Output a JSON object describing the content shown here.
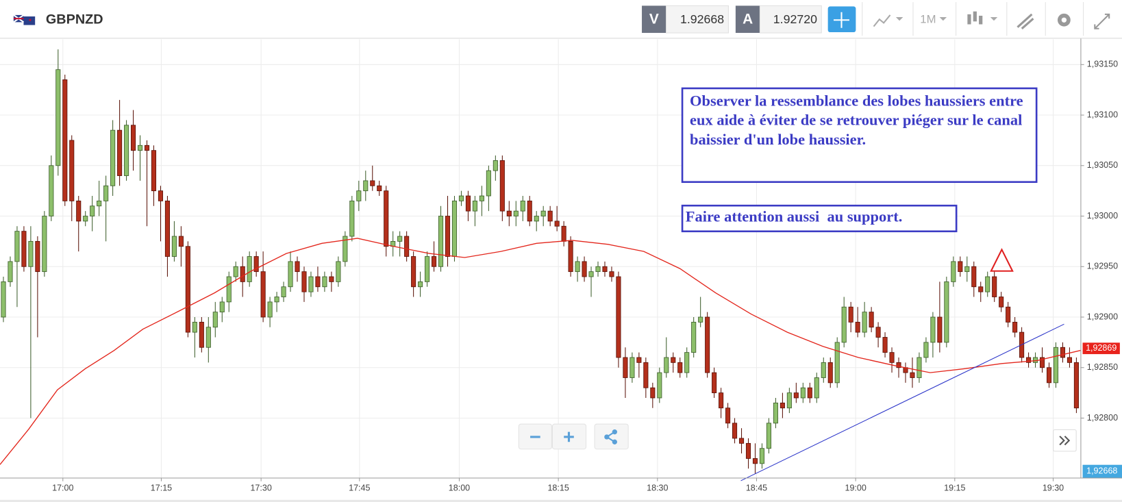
{
  "header": {
    "symbol": "GBPNZD",
    "bid_label": "V",
    "bid": "1.92668",
    "ask_label": "A",
    "ask": "1.92720",
    "timeframe": "1M"
  },
  "chart_data": {
    "type": "candlestick",
    "candles": [
      [
        1.929,
        1.9294,
        1.92895,
        1.92935
      ],
      [
        1.92935,
        1.9296,
        1.9293,
        1.92955
      ],
      [
        1.92955,
        1.9299,
        1.9291,
        1.92985
      ],
      [
        1.92985,
        1.9299,
        1.92945,
        1.9295
      ],
      [
        1.9295,
        1.9299,
        1.928,
        1.92975
      ],
      [
        1.92975,
        1.9298,
        1.9288,
        1.92945
      ],
      [
        1.92945,
        1.93005,
        1.9294,
        1.93
      ],
      [
        1.93,
        1.9306,
        1.92995,
        1.9305
      ],
      [
        1.9305,
        1.93165,
        1.9304,
        1.93145
      ],
      [
        1.93135,
        1.9314,
        1.9301,
        1.93015
      ],
      [
        1.93075,
        1.9308,
        1.92995,
        1.93015
      ],
      [
        1.93015,
        1.9302,
        1.92965,
        1.92995
      ],
      [
        1.92995,
        1.93005,
        1.9299,
        1.93
      ],
      [
        1.93,
        1.9302,
        1.92985,
        1.9301
      ],
      [
        1.9301,
        1.93035,
        1.93,
        1.93015
      ],
      [
        1.93015,
        1.9304,
        1.92975,
        1.9303
      ],
      [
        1.9303,
        1.93095,
        1.9302,
        1.93085
      ],
      [
        1.93085,
        1.93115,
        1.9303,
        1.9304
      ],
      [
        1.9304,
        1.93095,
        1.93035,
        1.9309
      ],
      [
        1.9309,
        1.93105,
        1.93045,
        1.93065
      ],
      [
        1.93065,
        1.9308,
        1.93035,
        1.9307
      ],
      [
        1.9307,
        1.93075,
        1.9299,
        1.93065
      ],
      [
        1.93065,
        1.9307,
        1.9301,
        1.93025
      ],
      [
        1.93025,
        1.9303,
        1.92975,
        1.93015
      ],
      [
        1.93015,
        1.9302,
        1.9294,
        1.9296
      ],
      [
        1.9296,
        1.92995,
        1.92955,
        1.9298
      ],
      [
        1.9298,
        1.9299,
        1.9295,
        1.9297
      ],
      [
        1.9297,
        1.92975,
        1.9288,
        1.92885
      ],
      [
        1.92885,
        1.929,
        1.9286,
        1.92895
      ],
      [
        1.92895,
        1.929,
        1.92865,
        1.9287
      ],
      [
        1.9287,
        1.929,
        1.92855,
        1.9289
      ],
      [
        1.9289,
        1.92915,
        1.9288,
        1.92905
      ],
      [
        1.92905,
        1.9292,
        1.92895,
        1.92915
      ],
      [
        1.92915,
        1.92945,
        1.92905,
        1.9294
      ],
      [
        1.9294,
        1.92955,
        1.92935,
        1.9295
      ],
      [
        1.9295,
        1.9296,
        1.9292,
        1.92935
      ],
      [
        1.92935,
        1.92965,
        1.9293,
        1.9296
      ],
      [
        1.9296,
        1.92965,
        1.9294,
        1.92945
      ],
      [
        1.92945,
        1.92965,
        1.92895,
        1.929
      ],
      [
        1.929,
        1.9292,
        1.9289,
        1.92915
      ],
      [
        1.92915,
        1.92925,
        1.92905,
        1.9292
      ],
      [
        1.9292,
        1.92935,
        1.92915,
        1.9293
      ],
      [
        1.9293,
        1.92965,
        1.92925,
        1.92955
      ],
      [
        1.92955,
        1.9296,
        1.92935,
        1.92945
      ],
      [
        1.92945,
        1.9295,
        1.92915,
        1.92925
      ],
      [
        1.92925,
        1.92945,
        1.9292,
        1.9294
      ],
      [
        1.9294,
        1.9295,
        1.92925,
        1.9293
      ],
      [
        1.9293,
        1.92945,
        1.92925,
        1.9294
      ],
      [
        1.9294,
        1.92945,
        1.92925,
        1.92935
      ],
      [
        1.92935,
        1.9296,
        1.9293,
        1.92955
      ],
      [
        1.92955,
        1.92985,
        1.9295,
        1.9298
      ],
      [
        1.9298,
        1.9302,
        1.92975,
        1.93015
      ],
      [
        1.93015,
        1.93035,
        1.93005,
        1.93025
      ],
      [
        1.93025,
        1.93045,
        1.93015,
        1.93035
      ],
      [
        1.93035,
        1.9305,
        1.93025,
        1.9303
      ],
      [
        1.9303,
        1.93035,
        1.9302,
        1.93025
      ],
      [
        1.93025,
        1.9303,
        1.9296,
        1.9297
      ],
      [
        1.9297,
        1.92985,
        1.9296,
        1.92975
      ],
      [
        1.92975,
        1.92985,
        1.9296,
        1.9298
      ],
      [
        1.9298,
        1.92985,
        1.92955,
        1.9296
      ],
      [
        1.9296,
        1.92965,
        1.9292,
        1.9293
      ],
      [
        1.9293,
        1.92945,
        1.9292,
        1.92935
      ],
      [
        1.92935,
        1.92965,
        1.9293,
        1.9296
      ],
      [
        1.9296,
        1.92975,
        1.92945,
        1.9295
      ],
      [
        1.9295,
        1.9301,
        1.92945,
        1.93
      ],
      [
        1.93,
        1.9302,
        1.9295,
        1.9296
      ],
      [
        1.9296,
        1.9302,
        1.92955,
        1.93015
      ],
      [
        1.93015,
        1.93025,
        1.9301,
        1.9302
      ],
      [
        1.9302,
        1.93025,
        1.92995,
        1.93005
      ],
      [
        1.93005,
        1.9302,
        1.9299,
        1.93015
      ],
      [
        1.93015,
        1.9303,
        1.93,
        1.9302
      ],
      [
        1.9302,
        1.9305,
        1.93005,
        1.93045
      ],
      [
        1.93045,
        1.9306,
        1.93035,
        1.93055
      ],
      [
        1.93055,
        1.9306,
        1.92995,
        1.93005
      ],
      [
        1.93005,
        1.93015,
        1.9299,
        1.93
      ],
      [
        1.93,
        1.93015,
        1.9299,
        1.93005
      ],
      [
        1.93005,
        1.9302,
        1.92995,
        1.93015
      ],
      [
        1.93015,
        1.9302,
        1.9299,
        1.92995
      ],
      [
        1.92995,
        1.93005,
        1.92985,
        1.93
      ],
      [
        1.93,
        1.9301,
        1.9299,
        1.93005
      ],
      [
        1.93005,
        1.9301,
        1.9299,
        1.92995
      ],
      [
        1.92995,
        1.9301,
        1.92985,
        1.9299
      ],
      [
        1.9299,
        1.92995,
        1.9297,
        1.92975
      ],
      [
        1.92975,
        1.9298,
        1.9294,
        1.92945
      ],
      [
        1.92945,
        1.9296,
        1.92935,
        1.92955
      ],
      [
        1.92955,
        1.9296,
        1.92935,
        1.9294
      ],
      [
        1.9294,
        1.9295,
        1.9292,
        1.92945
      ],
      [
        1.92945,
        1.92955,
        1.9294,
        1.9295
      ],
      [
        1.9295,
        1.92955,
        1.9294,
        1.92945
      ],
      [
        1.92945,
        1.9295,
        1.92935,
        1.9294
      ],
      [
        1.9294,
        1.92945,
        1.9285,
        1.9286
      ],
      [
        1.9286,
        1.9287,
        1.9282,
        1.9284
      ],
      [
        1.9284,
        1.92865,
        1.92835,
        1.9286
      ],
      [
        1.9286,
        1.92865,
        1.9284,
        1.92855
      ],
      [
        1.92855,
        1.9286,
        1.9282,
        1.9283
      ],
      [
        1.9283,
        1.92835,
        1.9281,
        1.9282
      ],
      [
        1.9282,
        1.9285,
        1.92815,
        1.92845
      ],
      [
        1.92845,
        1.9288,
        1.9284,
        1.9286
      ],
      [
        1.9286,
        1.92865,
        1.92845,
        1.92855
      ],
      [
        1.92855,
        1.9286,
        1.9284,
        1.92845
      ],
      [
        1.92845,
        1.9287,
        1.9284,
        1.92865
      ],
      [
        1.92865,
        1.929,
        1.9286,
        1.92895
      ],
      [
        1.92895,
        1.9292,
        1.9289,
        1.929
      ],
      [
        1.929,
        1.92905,
        1.9284,
        1.92845
      ],
      [
        1.92845,
        1.9285,
        1.9282,
        1.92825
      ],
      [
        1.92825,
        1.9283,
        1.928,
        1.9281
      ],
      [
        1.9281,
        1.92815,
        1.9279,
        1.92795
      ],
      [
        1.92795,
        1.928,
        1.92775,
        1.9278
      ],
      [
        1.9278,
        1.9279,
        1.92765,
        1.92775
      ],
      [
        1.92775,
        1.9278,
        1.9275,
        1.9276
      ],
      [
        1.9276,
        1.92775,
        1.92745,
        1.92755
      ],
      [
        1.92755,
        1.92775,
        1.9275,
        1.9277
      ],
      [
        1.9277,
        1.928,
        1.92765,
        1.92795
      ],
      [
        1.92795,
        1.9282,
        1.9279,
        1.92815
      ],
      [
        1.92815,
        1.92825,
        1.928,
        1.9281
      ],
      [
        1.9281,
        1.9283,
        1.92805,
        1.92825
      ],
      [
        1.92825,
        1.92835,
        1.92815,
        1.9282
      ],
      [
        1.9282,
        1.92835,
        1.92815,
        1.9283
      ],
      [
        1.9283,
        1.92835,
        1.92815,
        1.9282
      ],
      [
        1.9282,
        1.92845,
        1.92815,
        1.9284
      ],
      [
        1.9284,
        1.9286,
        1.92835,
        1.92855
      ],
      [
        1.92855,
        1.9286,
        1.9283,
        1.92835
      ],
      [
        1.92835,
        1.9288,
        1.9283,
        1.92875
      ],
      [
        1.92875,
        1.9292,
        1.9287,
        1.9291
      ],
      [
        1.9291,
        1.92915,
        1.92885,
        1.92895
      ],
      [
        1.92895,
        1.9291,
        1.9288,
        1.92885
      ],
      [
        1.92885,
        1.92915,
        1.9288,
        1.92905
      ],
      [
        1.92905,
        1.9291,
        1.92885,
        1.9289
      ],
      [
        1.9289,
        1.92895,
        1.9287,
        1.9288
      ],
      [
        1.9288,
        1.92885,
        1.9286,
        1.92865
      ],
      [
        1.92865,
        1.9287,
        1.92845,
        1.92855
      ],
      [
        1.92855,
        1.9286,
        1.9284,
        1.9285
      ],
      [
        1.9285,
        1.92855,
        1.92835,
        1.92845
      ],
      [
        1.92845,
        1.9286,
        1.9283,
        1.9284
      ],
      [
        1.9284,
        1.92865,
        1.92835,
        1.9286
      ],
      [
        1.9286,
        1.9288,
        1.92855,
        1.92875
      ],
      [
        1.92875,
        1.92905,
        1.9286,
        1.929
      ],
      [
        1.929,
        1.92935,
        1.92865,
        1.92875
      ],
      [
        1.92875,
        1.9294,
        1.9287,
        1.92935
      ],
      [
        1.92935,
        1.9296,
        1.9293,
        1.92955
      ],
      [
        1.92955,
        1.9296,
        1.9294,
        1.92945
      ],
      [
        1.92945,
        1.9296,
        1.92935,
        1.9295
      ],
      [
        1.9295,
        1.92955,
        1.9292,
        1.9293
      ],
      [
        1.9293,
        1.92935,
        1.92915,
        1.92925
      ],
      [
        1.92925,
        1.92945,
        1.9292,
        1.9294
      ],
      [
        1.9294,
        1.92945,
        1.92915,
        1.9292
      ],
      [
        1.9292,
        1.92925,
        1.92905,
        1.9291
      ],
      [
        1.9291,
        1.92915,
        1.9289,
        1.92895
      ],
      [
        1.92895,
        1.929,
        1.9288,
        1.92885
      ],
      [
        1.92885,
        1.9289,
        1.92855,
        1.9286
      ],
      [
        1.9286,
        1.92865,
        1.9285,
        1.92855
      ],
      [
        1.92855,
        1.92865,
        1.9285,
        1.9286
      ],
      [
        1.9286,
        1.9287,
        1.92845,
        1.9285
      ],
      [
        1.9285,
        1.92855,
        1.9283,
        1.92835
      ],
      [
        1.92835,
        1.92875,
        1.9283,
        1.9287
      ],
      [
        1.9287,
        1.92875,
        1.92855,
        1.9286
      ],
      [
        1.9286,
        1.9287,
        1.9285,
        1.92855
      ],
      [
        1.92855,
        1.9286,
        1.92805,
        1.9281
      ]
    ],
    "colors": {
      "up": "#8dbf6b",
      "down": "#b3301c"
    },
    "xlim": [
      -0.5,
      157.6
    ],
    "xticks": [
      {
        "value": 8.7,
        "label": "17:00"
      },
      {
        "value": 23.1,
        "label": "17:15"
      },
      {
        "value": 37.7,
        "label": "17:30"
      },
      {
        "value": 52.1,
        "label": "17:45"
      },
      {
        "value": 66.7,
        "label": "18:00"
      },
      {
        "value": 81.2,
        "label": "18:15"
      },
      {
        "value": 95.7,
        "label": "18:30"
      },
      {
        "value": 110.2,
        "label": "18:45"
      },
      {
        "value": 124.7,
        "label": "19:00"
      },
      {
        "value": 139.2,
        "label": "19:15"
      },
      {
        "value": 153.6,
        "label": "19:30"
      }
    ],
    "ylim": [
      1.92741,
      1.93175
    ],
    "yticks": [
      {
        "value": 1.9315,
        "label": "1,93150"
      },
      {
        "value": 1.931,
        "label": "1,93100"
      },
      {
        "value": 1.9305,
        "label": "1,93050"
      },
      {
        "value": 1.93,
        "label": "1,93000"
      },
      {
        "value": 1.9295,
        "label": "1,92950"
      },
      {
        "value": 1.929,
        "label": "1,92900"
      },
      {
        "value": 1.9285,
        "label": "1,92850"
      },
      {
        "value": 1.928,
        "label": "1,92800"
      }
    ],
    "grid": true,
    "moving_average": {
      "color": "#e3261c",
      "x": [
        -0.5,
        3.7,
        7.9,
        12.0,
        16.2,
        20.4,
        25.7,
        30.9,
        36.1,
        41.4,
        46.6,
        51.8,
        57.1,
        62.3,
        67.5,
        72.8,
        78.0,
        83.2,
        88.5,
        93.7,
        99.0,
        104.2,
        109.4,
        114.7,
        119.9,
        125.1,
        130.4,
        135.6,
        140.8,
        146.1,
        151.3,
        157.6
      ],
      "values": [
        1.92754,
        1.92789,
        1.92828,
        1.92849,
        1.92867,
        1.92888,
        1.92906,
        1.92924,
        1.92945,
        1.92963,
        1.92973,
        1.92978,
        1.9297,
        1.92963,
        1.92959,
        1.92965,
        1.92973,
        1.92976,
        1.92972,
        1.92965,
        1.92948,
        1.92924,
        1.92903,
        1.92885,
        1.92871,
        1.9286,
        1.92852,
        1.92845,
        1.92849,
        1.92854,
        1.92857,
        1.92867
      ]
    },
    "trendline": {
      "color": "#2b35c9",
      "x": [
        107.9,
        155.2
      ],
      "values": [
        1.92738,
        1.92893
      ]
    },
    "last_price": {
      "value": 1.92869,
      "label": "1,92869"
    },
    "price_marker": {
      "value": 1.92668,
      "label": "1,92668"
    },
    "annotations": [
      "Observer la ressemblance des lobes haussiers entre eux aide à éviter de se retrouver piéger sur le canal baissier d'un lobe haussier.",
      "Faire attention aussi  au support."
    ]
  }
}
